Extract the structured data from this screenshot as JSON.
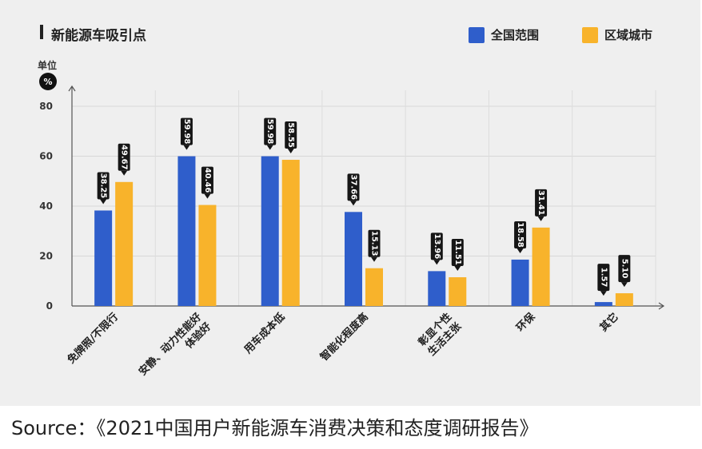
{
  "chart_data": {
    "type": "bar",
    "title": "新能源车吸引点",
    "unit_label": "单位",
    "unit_symbol": "%",
    "categories": [
      [
        "免牌照/不限行"
      ],
      [
        "安静、动力性能好",
        "体验好"
      ],
      [
        "用车成本低"
      ],
      [
        "智能化程度高"
      ],
      [
        "彰显个性",
        "生活主张"
      ],
      [
        "环保"
      ],
      [
        "其它"
      ]
    ],
    "series": [
      {
        "name": "全国范围",
        "color": "#2f5ecb",
        "values": [
          38.25,
          59.98,
          59.98,
          37.66,
          13.96,
          18.58,
          1.57
        ]
      },
      {
        "name": "区域城市",
        "color": "#f8b32b",
        "values": [
          49.67,
          40.46,
          58.55,
          15.13,
          11.51,
          31.41,
          5.1
        ]
      }
    ],
    "yticks": [
      0,
      20,
      40,
      60,
      80
    ],
    "ylim": [
      0,
      80
    ],
    "xlabel": "",
    "ylabel": ""
  },
  "source_text": "Source：《2021中国用户新能源车消费决策和态度调研报告》"
}
